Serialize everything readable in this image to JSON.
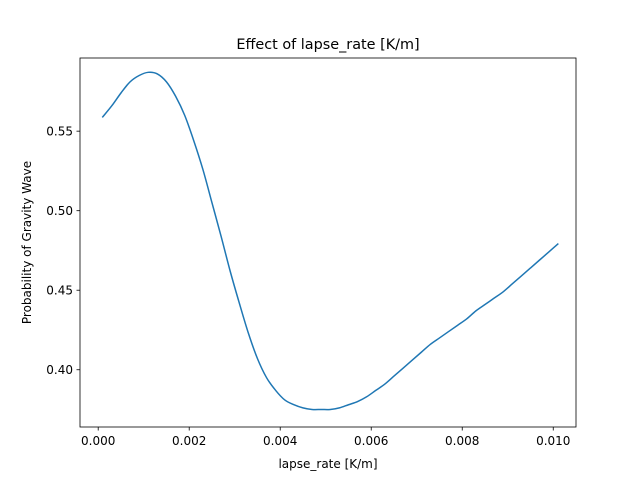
{
  "chart_data": {
    "type": "line",
    "title": "Effect of lapse_rate [K/m]",
    "xlabel": "lapse_rate [K/m]",
    "ylabel": "Probability of Gravity Wave",
    "xlim": [
      -0.0004,
      0.0105
    ],
    "ylim": [
      0.364,
      0.596
    ],
    "xticks": [
      0.0,
      0.002,
      0.004,
      0.006,
      0.008,
      0.01
    ],
    "xtick_labels": [
      "0.000",
      "0.002",
      "0.004",
      "0.006",
      "0.008",
      "0.010"
    ],
    "yticks": [
      0.4,
      0.45,
      0.5,
      0.55
    ],
    "ytick_labels": [
      "0.40",
      "0.45",
      "0.50",
      "0.55"
    ],
    "grid": false,
    "legend": false,
    "line_color": "#1f77b4",
    "series": [
      {
        "x": [
          0.0001,
          0.0003,
          0.0005,
          0.0007,
          0.0009,
          0.0011,
          0.0013,
          0.0015,
          0.0017,
          0.0019,
          0.0021,
          0.0023,
          0.0025,
          0.0027,
          0.0029,
          0.0031,
          0.0033,
          0.0035,
          0.0037,
          0.0039,
          0.0041,
          0.0043,
          0.0045,
          0.0047,
          0.0049,
          0.0051,
          0.0053,
          0.0055,
          0.0057,
          0.0059,
          0.0061,
          0.0063,
          0.0065,
          0.0067,
          0.0069,
          0.0071,
          0.0073,
          0.0075,
          0.0077,
          0.0079,
          0.0081,
          0.0083,
          0.0085,
          0.0087,
          0.0089,
          0.0091,
          0.0093,
          0.0095,
          0.0097,
          0.0099,
          0.0101
        ],
        "y": [
          0.559,
          0.566,
          0.574,
          0.581,
          0.585,
          0.587,
          0.586,
          0.581,
          0.572,
          0.56,
          0.544,
          0.526,
          0.505,
          0.484,
          0.462,
          0.442,
          0.423,
          0.407,
          0.395,
          0.387,
          0.381,
          0.378,
          0.376,
          0.375,
          0.375,
          0.375,
          0.376,
          0.378,
          0.38,
          0.383,
          0.387,
          0.391,
          0.396,
          0.401,
          0.406,
          0.411,
          0.416,
          0.42,
          0.424,
          0.428,
          0.432,
          0.437,
          0.441,
          0.445,
          0.449,
          0.454,
          0.459,
          0.464,
          0.469,
          0.474,
          0.479
        ]
      }
    ]
  }
}
